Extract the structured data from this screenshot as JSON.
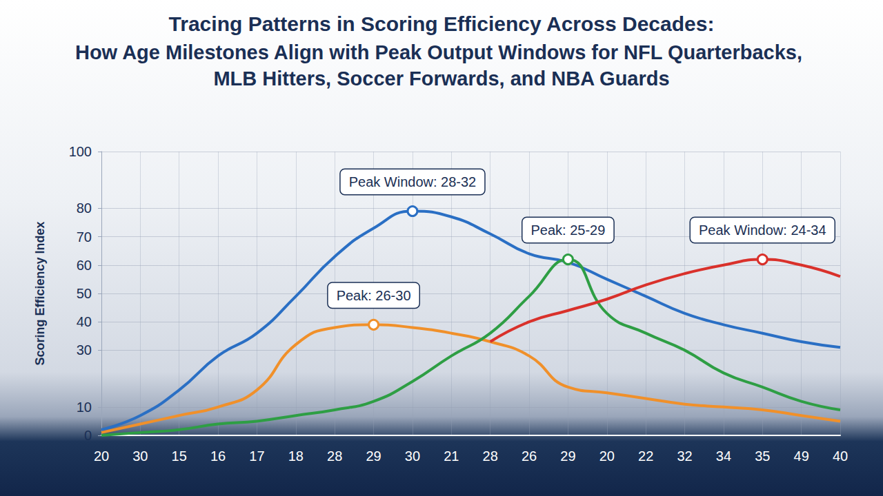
{
  "chart_data": {
    "type": "line",
    "title": "Tracing Patterns in Scoring Efficiency Across Decades:",
    "subtitle": "How Age Milestones Align with Peak Output Windows for NFL Quarterbacks, MLB Hitters, Soccer Forwards, and NBA Guards",
    "y_label": "Scoring Efficiency Index",
    "categories": [
      "20",
      "30",
      "15",
      "16",
      "17",
      "18",
      "28",
      "29",
      "30",
      "21",
      "28",
      "26",
      "29",
      "20",
      "22",
      "32",
      "34",
      "35",
      "49",
      "40"
    ],
    "series": [
      {
        "color": "#2a6fc4",
        "annotation": "Peak Window: 28-32",
        "values": [
          2,
          7,
          16,
          28,
          36,
          49,
          63,
          73,
          79,
          77,
          71,
          64,
          61,
          55,
          49,
          43,
          39,
          36,
          33,
          31
        ]
      },
      {
        "color": "#f0902a",
        "annotation": "Peak: 26-30",
        "values": [
          1,
          4,
          7,
          10,
          16,
          32,
          38,
          39,
          38,
          36,
          33,
          28,
          17,
          15,
          13,
          11,
          10,
          9,
          7,
          5
        ]
      },
      {
        "color": "#2e9e44",
        "annotation": "Peak: 25-29",
        "values": [
          0,
          1,
          2,
          4,
          5,
          7,
          9,
          12,
          19,
          28,
          36,
          49,
          62,
          43,
          36,
          30,
          22,
          17,
          12,
          9
        ]
      },
      {
        "color": "#d9312b",
        "annotation": "Peak Window: 24-34",
        "values": [
          null,
          null,
          null,
          null,
          null,
          null,
          null,
          null,
          null,
          null,
          33,
          40,
          44,
          48,
          53,
          57,
          60,
          62,
          60,
          56
        ]
      }
    ],
    "ylim": [
      0,
      100
    ],
    "yticks": [
      0,
      10,
      30,
      40,
      50,
      60,
      70,
      80,
      100
    ],
    "grid": true,
    "line_style": "solid"
  }
}
